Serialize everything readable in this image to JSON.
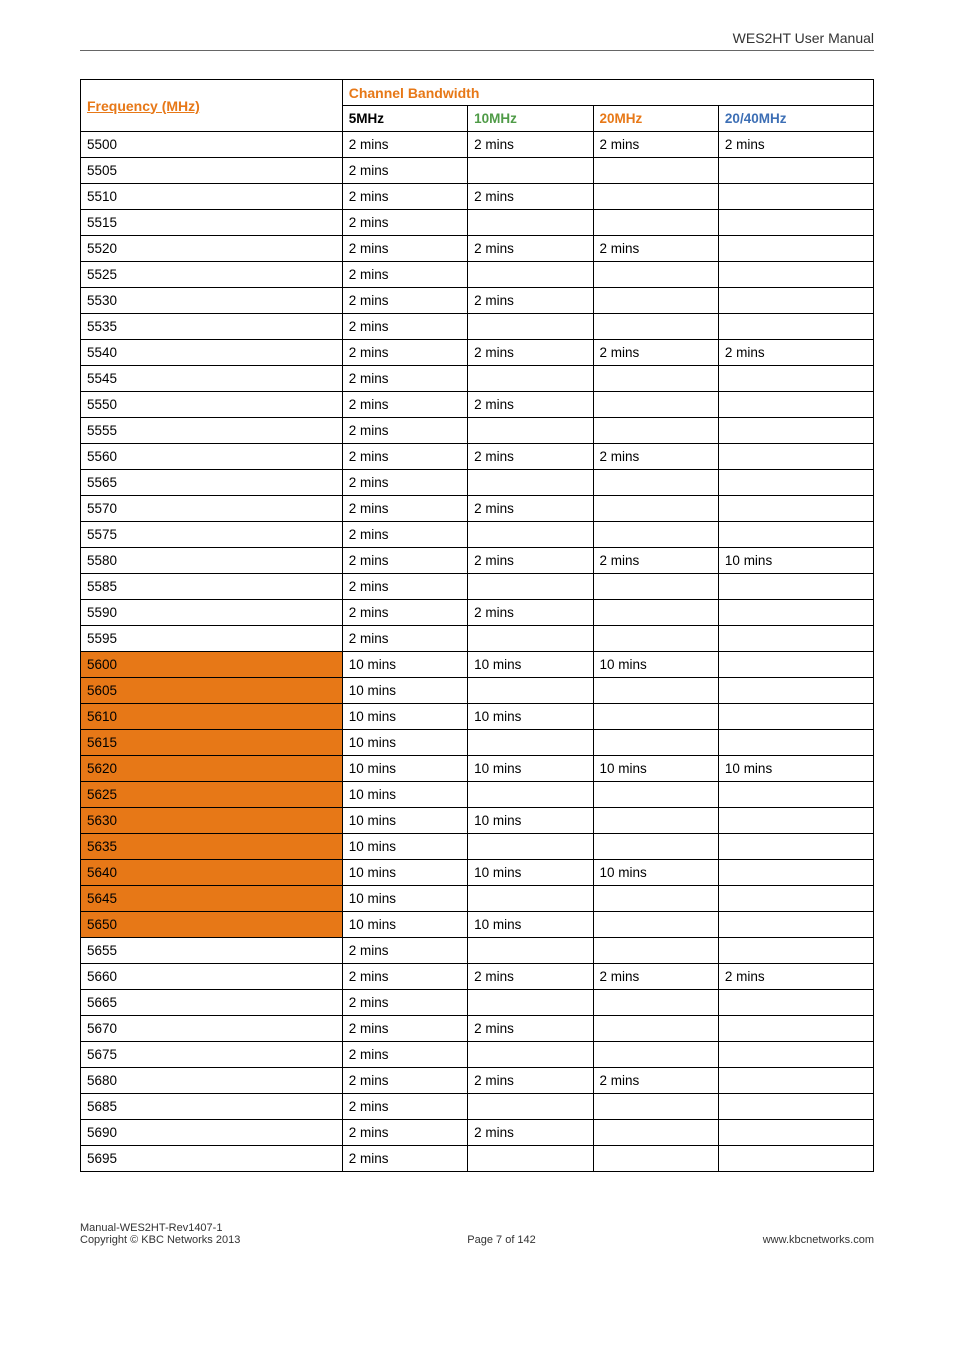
{
  "header": {
    "title": "WES2HT User Manual"
  },
  "table": {
    "freq_header": "Frequency (MHz)",
    "bw_header": "Channel Bandwidth",
    "cols": {
      "c5": "5MHz",
      "c10": "10MHz",
      "c20": "20MHz",
      "c40": "20/40MHz"
    },
    "rows": [
      {
        "f": "5500",
        "orange": false,
        "v5": "2 mins",
        "v10": "2 mins",
        "v20": "2 mins",
        "v40": "2 mins"
      },
      {
        "f": "5505",
        "orange": false,
        "v5": "2 mins",
        "v10": "",
        "v20": "",
        "v40": ""
      },
      {
        "f": "5510",
        "orange": false,
        "v5": "2 mins",
        "v10": "2 mins",
        "v20": "",
        "v40": ""
      },
      {
        "f": "5515",
        "orange": false,
        "v5": "2 mins",
        "v10": "",
        "v20": "",
        "v40": ""
      },
      {
        "f": "5520",
        "orange": false,
        "v5": "2 mins",
        "v10": "2 mins",
        "v20": "2 mins",
        "v40": ""
      },
      {
        "f": "5525",
        "orange": false,
        "v5": "2 mins",
        "v10": "",
        "v20": "",
        "v40": ""
      },
      {
        "f": "5530",
        "orange": false,
        "v5": "2 mins",
        "v10": "2 mins",
        "v20": "",
        "v40": ""
      },
      {
        "f": "5535",
        "orange": false,
        "v5": "2 mins",
        "v10": "",
        "v20": "",
        "v40": ""
      },
      {
        "f": "5540",
        "orange": false,
        "v5": "2 mins",
        "v10": "2 mins",
        "v20": "2 mins",
        "v40": "2 mins"
      },
      {
        "f": "5545",
        "orange": false,
        "v5": "2 mins",
        "v10": "",
        "v20": "",
        "v40": ""
      },
      {
        "f": "5550",
        "orange": false,
        "v5": "2 mins",
        "v10": "2 mins",
        "v20": "",
        "v40": ""
      },
      {
        "f": "5555",
        "orange": false,
        "v5": "2 mins",
        "v10": "",
        "v20": "",
        "v40": ""
      },
      {
        "f": "5560",
        "orange": false,
        "v5": "2 mins",
        "v10": "2 mins",
        "v20": "2 mins",
        "v40": ""
      },
      {
        "f": "5565",
        "orange": false,
        "v5": "2 mins",
        "v10": "",
        "v20": "",
        "v40": ""
      },
      {
        "f": "5570",
        "orange": false,
        "v5": "2 mins",
        "v10": "2 mins",
        "v20": "",
        "v40": ""
      },
      {
        "f": "5575",
        "orange": false,
        "v5": "2 mins",
        "v10": "",
        "v20": "",
        "v40": ""
      },
      {
        "f": "5580",
        "orange": false,
        "v5": "2 mins",
        "v10": "2 mins",
        "v20": "2 mins",
        "v40": "10 mins"
      },
      {
        "f": "5585",
        "orange": false,
        "v5": "2 mins",
        "v10": "",
        "v20": "",
        "v40": ""
      },
      {
        "f": "5590",
        "orange": false,
        "v5": "2 mins",
        "v10": "2 mins",
        "v20": "",
        "v40": ""
      },
      {
        "f": "5595",
        "orange": false,
        "v5": "2 mins",
        "v10": "",
        "v20": "",
        "v40": ""
      },
      {
        "f": "5600",
        "orange": true,
        "v5": "10 mins",
        "v10": "10 mins",
        "v20": "10 mins",
        "v40": ""
      },
      {
        "f": "5605",
        "orange": true,
        "v5": "10 mins",
        "v10": "",
        "v20": "",
        "v40": ""
      },
      {
        "f": "5610",
        "orange": true,
        "v5": "10 mins",
        "v10": "10 mins",
        "v20": "",
        "v40": ""
      },
      {
        "f": "5615",
        "orange": true,
        "v5": "10 mins",
        "v10": "",
        "v20": "",
        "v40": ""
      },
      {
        "f": "5620",
        "orange": true,
        "v5": "10 mins",
        "v10": "10 mins",
        "v20": "10 mins",
        "v40": "10 mins"
      },
      {
        "f": "5625",
        "orange": true,
        "v5": "10 mins",
        "v10": "",
        "v20": "",
        "v40": ""
      },
      {
        "f": "5630",
        "orange": true,
        "v5": "10 mins",
        "v10": "10 mins",
        "v20": "",
        "v40": ""
      },
      {
        "f": "5635",
        "orange": true,
        "v5": "10 mins",
        "v10": "",
        "v20": "",
        "v40": ""
      },
      {
        "f": "5640",
        "orange": true,
        "v5": "10 mins",
        "v10": "10 mins",
        "v20": "10 mins",
        "v40": ""
      },
      {
        "f": "5645",
        "orange": true,
        "v5": "10 mins",
        "v10": "",
        "v20": "",
        "v40": ""
      },
      {
        "f": "5650",
        "orange": true,
        "v5": "10 mins",
        "v10": "10 mins",
        "v20": "",
        "v40": ""
      },
      {
        "f": "5655",
        "orange": false,
        "v5": "2 mins",
        "v10": "",
        "v20": "",
        "v40": ""
      },
      {
        "f": "5660",
        "orange": false,
        "v5": "2 mins",
        "v10": "2 mins",
        "v20": "2 mins",
        "v40": "2 mins"
      },
      {
        "f": "5665",
        "orange": false,
        "v5": "2 mins",
        "v10": "",
        "v20": "",
        "v40": ""
      },
      {
        "f": "5670",
        "orange": false,
        "v5": "2 mins",
        "v10": "2 mins",
        "v20": "",
        "v40": ""
      },
      {
        "f": "5675",
        "orange": false,
        "v5": "2 mins",
        "v10": "",
        "v20": "",
        "v40": ""
      },
      {
        "f": "5680",
        "orange": false,
        "v5": "2 mins",
        "v10": "2 mins",
        "v20": "2 mins",
        "v40": ""
      },
      {
        "f": "5685",
        "orange": false,
        "v5": "2 mins",
        "v10": "",
        "v20": "",
        "v40": ""
      },
      {
        "f": "5690",
        "orange": false,
        "v5": "2 mins",
        "v10": "2 mins",
        "v20": "",
        "v40": ""
      },
      {
        "f": "5695",
        "orange": false,
        "v5": "2 mins",
        "v10": "",
        "v20": "",
        "v40": ""
      }
    ]
  },
  "footer": {
    "left1": "Manual-WES2HT-Rev1407-1",
    "left2": "Copyright © KBC Networks 2013",
    "center": "Page 7 of 142",
    "right": "www.kbcnetworks.com"
  },
  "colors": {
    "orange_bg": "#e77817",
    "green": "#4f9b47",
    "blue": "#3d6fb5",
    "text": "#000000",
    "border": "#000000"
  }
}
